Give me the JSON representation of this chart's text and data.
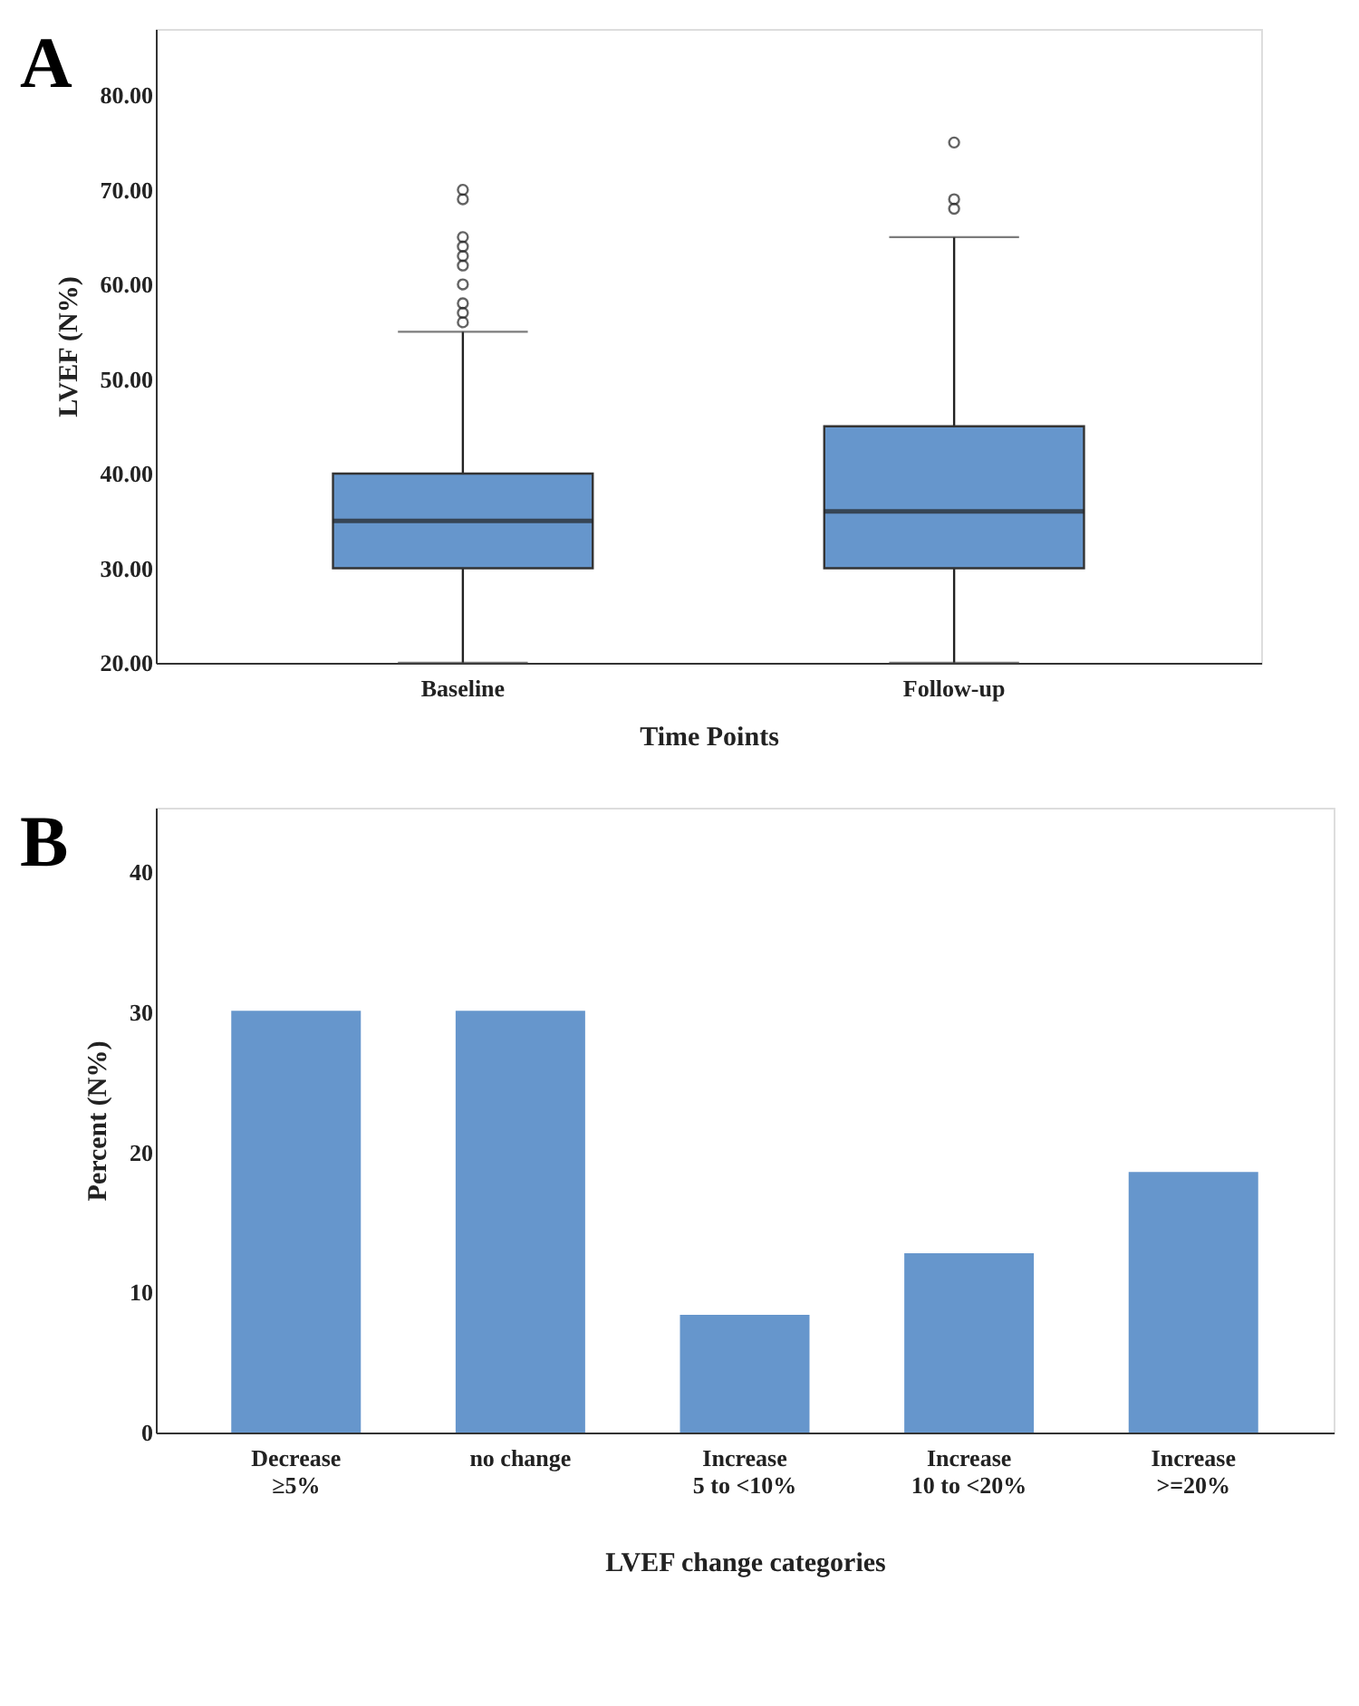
{
  "chart_data": [
    {
      "type": "box",
      "title": "A",
      "xlabel": "Time Points",
      "ylabel": "LVEF (N%)",
      "categories": [
        "Baseline",
        "Follow-up"
      ],
      "color": "#6696cc",
      "boxes": [
        {
          "low": 20,
          "q1": 30,
          "median": 35,
          "q3": 40,
          "high": 55,
          "outliers": [
            56,
            57,
            58,
            60,
            62,
            63,
            64,
            65,
            69,
            70
          ]
        },
        {
          "low": 20,
          "q1": 30,
          "median": 36,
          "q3": 45,
          "high": 65,
          "outliers": [
            68,
            69,
            75
          ]
        }
      ],
      "ylim": [
        20,
        87
      ],
      "yticks": [
        {
          "value": 20,
          "label": "20.00"
        },
        {
          "value": 30,
          "label": "30.00"
        },
        {
          "value": 40,
          "label": "40.00"
        },
        {
          "value": 50,
          "label": "50.00"
        },
        {
          "value": 60,
          "label": "60.00"
        },
        {
          "value": 70,
          "label": "70.00"
        },
        {
          "value": 80,
          "label": "80.00"
        }
      ],
      "grid": false
    },
    {
      "type": "bar",
      "title": "B",
      "xlabel": "LVEF change categories",
      "ylabel": "Percent (N%)",
      "categories": [
        "Decrease\n≥5%",
        "no change",
        "Increase\n5 to <10%",
        "Increase\n10 to <20%",
        "Increase\n>=20%"
      ],
      "color": "#6696cc",
      "values": [
        30.1,
        30.1,
        8.4,
        12.8,
        18.6
      ],
      "ylim": [
        0,
        44.6
      ],
      "yticks": [
        0,
        10,
        20,
        30,
        40
      ],
      "grid": false
    }
  ]
}
